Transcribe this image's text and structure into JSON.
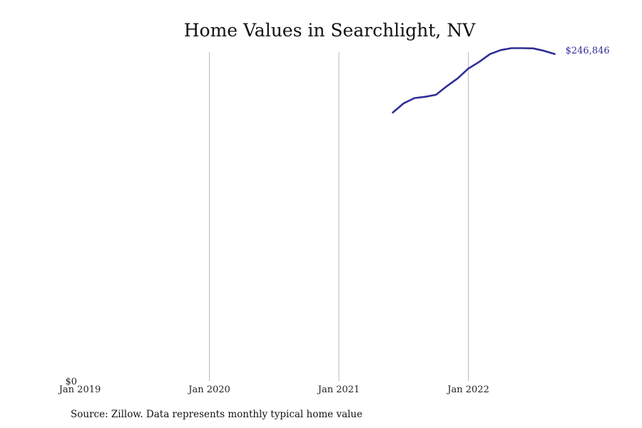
{
  "chart_data": {
    "type": "line",
    "title": "Home Values in Searchlight, NV",
    "xlabel": "",
    "ylabel": "",
    "x_ticks": [
      {
        "label": "Jan 2019",
        "date": "2019-01"
      },
      {
        "label": "Jan 2020",
        "date": "2020-01"
      },
      {
        "label": "Jan 2021",
        "date": "2021-01"
      },
      {
        "label": "Jan 2022",
        "date": "2022-01"
      }
    ],
    "y_ticks": [
      {
        "label": "$0",
        "value": 0
      }
    ],
    "xlim": [
      "2019-01",
      "2022-12"
    ],
    "ylim": [
      0,
      250000
    ],
    "grid": "vertical",
    "line_color": "#2e2e96",
    "series": [
      {
        "values": [
          {
            "x": "2021-06",
            "y": 204000
          },
          {
            "x": "2021-07",
            "y": 211000
          },
          {
            "x": "2021-08",
            "y": 215000
          },
          {
            "x": "2021-09",
            "y": 216000
          },
          {
            "x": "2021-10",
            "y": 217500
          },
          {
            "x": "2021-11",
            "y": 224000
          },
          {
            "x": "2021-12",
            "y": 230000
          },
          {
            "x": "2022-01",
            "y": 237500
          },
          {
            "x": "2022-02",
            "y": 242500
          },
          {
            "x": "2022-03",
            "y": 248500
          },
          {
            "x": "2022-04",
            "y": 251500
          },
          {
            "x": "2022-05",
            "y": 253000
          },
          {
            "x": "2022-06",
            "y": 253000
          },
          {
            "x": "2022-07",
            "y": 252800
          },
          {
            "x": "2022-08",
            "y": 251000
          },
          {
            "x": "2022-09",
            "y": 248500
          }
        ]
      }
    ],
    "end_label": "$246,846",
    "source": "Source: Zillow. Data represents monthly typical home value"
  }
}
